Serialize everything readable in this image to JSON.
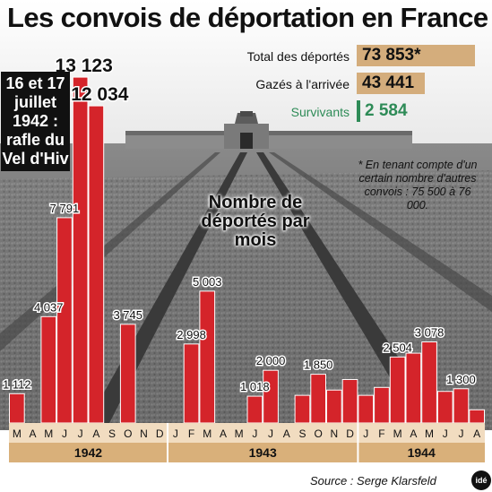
{
  "title": "Les convois de déportation en France",
  "stats": [
    {
      "label": "Total des déportés",
      "value": "73 853*",
      "color": "#d4ad7c"
    },
    {
      "label": "Gazés à l'arrivée",
      "value": "43 441",
      "color": "#d4ad7c"
    },
    {
      "label": "Survivants",
      "value": "2 584",
      "color": "#2e8b57"
    }
  ],
  "note": "* En tenant compte d'un certain nombre d'autres convois : 75 500 à 76 000.",
  "callout": "16 et 17 juillet 1942 : rafle du Vel d'Hiv",
  "chart_label": "Nombre de déportés par mois",
  "source": "Source : Serge Klarsfeld",
  "logo": "idé",
  "colors": {
    "bar": "#d4242a",
    "axis_band": "#f1dcc0",
    "year_band": "#d9b07a",
    "text": "#111111"
  },
  "chart_data": {
    "type": "bar",
    "title": "Nombre de déportés par mois",
    "categories": [
      "M",
      "A",
      "M",
      "J",
      "J",
      "A",
      "S",
      "O",
      "N",
      "D",
      "J",
      "F",
      "M",
      "A",
      "M",
      "J",
      "J",
      "A",
      "S",
      "O",
      "N",
      "D",
      "J",
      "F",
      "M",
      "A",
      "M",
      "J",
      "J",
      "A"
    ],
    "years": [
      {
        "label": "1942",
        "start": 0,
        "end": 9
      },
      {
        "label": "1943",
        "start": 10,
        "end": 21
      },
      {
        "label": "1944",
        "start": 22,
        "end": 29
      }
    ],
    "values": [
      1112,
      0,
      4037,
      7791,
      13123,
      12034,
      0,
      3745,
      0,
      0,
      0,
      2998,
      5003,
      0,
      0,
      1018,
      2000,
      0,
      1050,
      1850,
      1250,
      1650,
      1050,
      1350,
      2504,
      2650,
      3078,
      1200,
      1300,
      500
    ],
    "labels": [
      "1 112",
      "",
      "4 037",
      "7 791",
      "13 123",
      "12 034",
      "",
      "3 745",
      "",
      "",
      "",
      "2 998",
      "5 003",
      "",
      "",
      "1 018",
      "2 000",
      "",
      "",
      "1 850",
      "",
      "",
      "",
      "",
      "2 504",
      "",
      "3 078",
      "",
      "1 300",
      ""
    ],
    "ylim": [
      0,
      13500
    ]
  }
}
